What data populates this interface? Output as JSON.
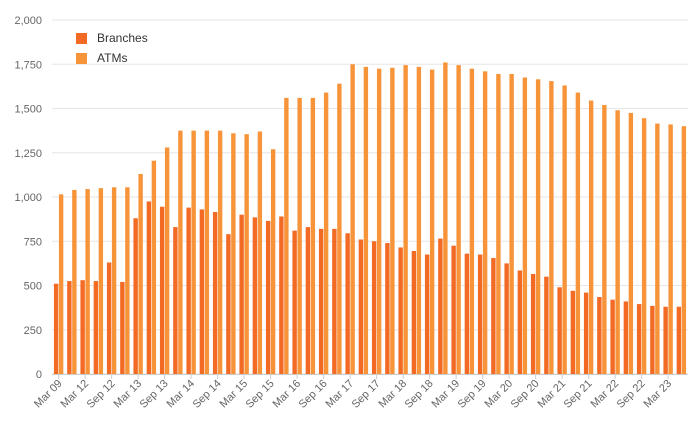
{
  "colors": {
    "branches": "#F26A24",
    "atms": "#F7943A",
    "grid": "#e6e6e6",
    "axis_text": "#666666"
  },
  "chart_data": {
    "type": "bar",
    "grid": true,
    "legend_position": "top-left",
    "ylim": [
      0,
      2000
    ],
    "y_ticks": [
      0,
      250,
      500,
      750,
      1000,
      1250,
      1500,
      1750,
      2000
    ],
    "y_tick_labels": [
      "0",
      "250",
      "500",
      "750",
      "1,000",
      "1,250",
      "1,500",
      "1,750",
      "2,000"
    ],
    "x_tick_labels": [
      "Mar 09",
      "Mar 12",
      "Sep 12",
      "Mar 13",
      "Sep 13",
      "Mar 14",
      "Sep 14",
      "Mar 15",
      "Sep 15",
      "Mar 16",
      "Sep 16",
      "Mar 17",
      "Sep 17",
      "Mar 18",
      "Sep 18",
      "Mar 19",
      "Sep 19",
      "Mar 20",
      "Sep 20",
      "Mar 21",
      "Sep 21",
      "Mar 22",
      "Sep 22",
      "Mar 23"
    ],
    "series": [
      {
        "name": "Branches",
        "values": [
          510,
          525,
          530,
          525,
          630,
          520,
          880,
          975,
          945,
          830,
          940,
          930,
          915,
          790,
          900,
          885,
          865,
          890,
          810,
          830,
          820,
          820,
          795,
          760,
          750,
          740,
          715,
          695,
          675,
          765,
          725,
          680,
          675,
          655,
          625,
          585,
          565,
          550,
          490,
          470,
          460,
          435,
          420,
          410,
          395,
          385,
          380,
          380
        ]
      },
      {
        "name": "ATMs",
        "values": [
          1015,
          1040,
          1045,
          1050,
          1055,
          1055,
          1130,
          1205,
          1280,
          1375,
          1375,
          1375,
          1375,
          1360,
          1355,
          1370,
          1270,
          1560,
          1560,
          1560,
          1590,
          1640,
          1750,
          1735,
          1725,
          1730,
          1745,
          1735,
          1720,
          1760,
          1745,
          1725,
          1710,
          1695,
          1695,
          1675,
          1665,
          1655,
          1630,
          1590,
          1545,
          1520,
          1490,
          1475,
          1445,
          1415,
          1410,
          1400
        ]
      }
    ]
  }
}
